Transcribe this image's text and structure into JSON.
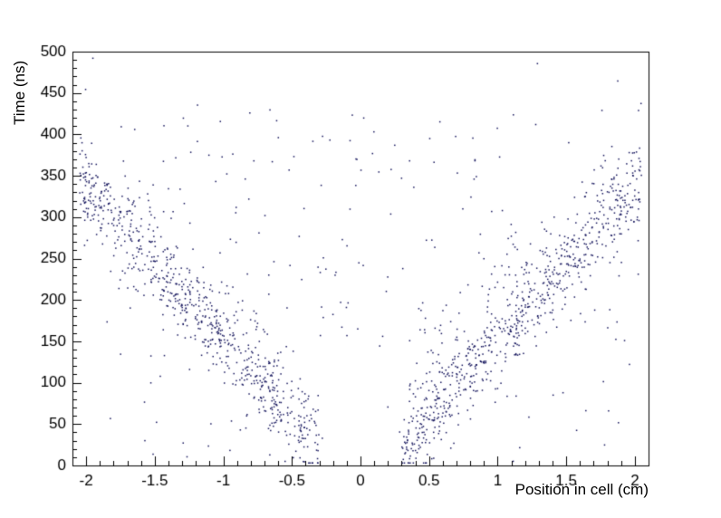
{
  "chart_data": {
    "type": "scatter",
    "title": "",
    "xlabel": "Position in cell (cm)",
    "ylabel": "Time (ns)",
    "xlim": [
      -2.1,
      2.1
    ],
    "ylim": [
      0,
      500
    ],
    "x_major_ticks": [
      -2,
      -1.5,
      -1,
      -0.5,
      0,
      0.5,
      1,
      1.5,
      2
    ],
    "x_tick_labels": [
      "-2",
      "-1.5",
      "-1",
      "-0.5",
      "0",
      "0.5",
      "1",
      "1.5",
      "2"
    ],
    "x_minor_step": 0.1,
    "y_major_ticks": [
      0,
      50,
      100,
      150,
      200,
      250,
      300,
      350,
      400,
      450,
      500
    ],
    "y_minor_step": 10,
    "grid": false,
    "legend": "none",
    "background_color": "#ffffff",
    "axis_color": "#000000",
    "marker": {
      "color": "#17175e",
      "size": 1.5,
      "shape": "dot"
    },
    "pattern": {
      "description": "V-shaped scatter of drift time versus position: time rises approximately linearly with |position|, from ~20 ns near |x|=0.3 cm up to ~330-430 ns at |x|=2 cm, with ~25 ns band spread, an upward tail, and sparse uniform outliers across the plane.",
      "seed": 42,
      "n_points": 1750,
      "band_fraction": 0.88,
      "band": {
        "x_abs_min": 0.3,
        "x_abs_max": 2.05,
        "t_at_min_ns": 22,
        "slope_ns_per_cm": 183,
        "sigma_ns": 26,
        "tail_fraction": 0.18,
        "tail_scale_ns": 45
      },
      "outliers": {
        "x_min": -2.05,
        "x_max": 2.05,
        "t_min": 5,
        "t_max": 430
      }
    }
  }
}
